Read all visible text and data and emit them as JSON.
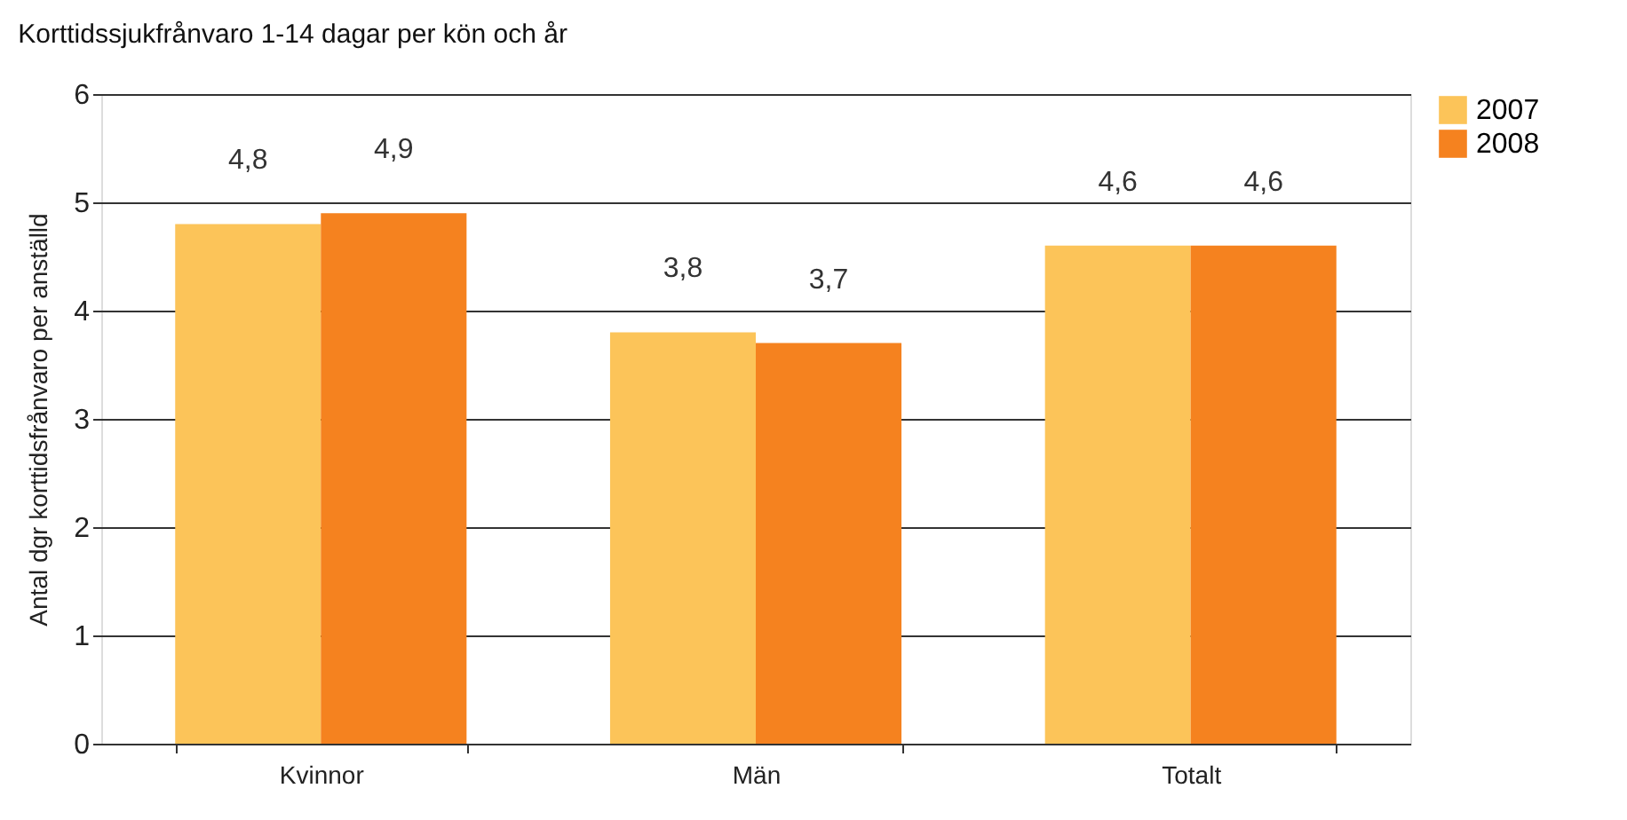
{
  "chart_data": {
    "type": "bar",
    "title": "Korttidssjukfrånvaro 1-14 dagar per kön och år",
    "ylabel": "Antal dgr korttidsfrånvaro per anställd",
    "categories": [
      "Kvinnor",
      "Män",
      "Totalt"
    ],
    "series": [
      {
        "name": "2007",
        "color": "#fcc459",
        "values": [
          4.8,
          3.8,
          4.6
        ],
        "value_labels": [
          "4,8",
          "3,8",
          "4,6"
        ]
      },
      {
        "name": "2008",
        "color": "#f5821f",
        "values": [
          4.9,
          3.7,
          4.6
        ],
        "value_labels": [
          "4,9",
          "3,7",
          "4,6"
        ]
      }
    ],
    "ylim": [
      0,
      6
    ],
    "yticks": [
      0,
      1,
      2,
      3,
      4,
      5,
      6
    ],
    "grid": "y",
    "legend": "right"
  }
}
